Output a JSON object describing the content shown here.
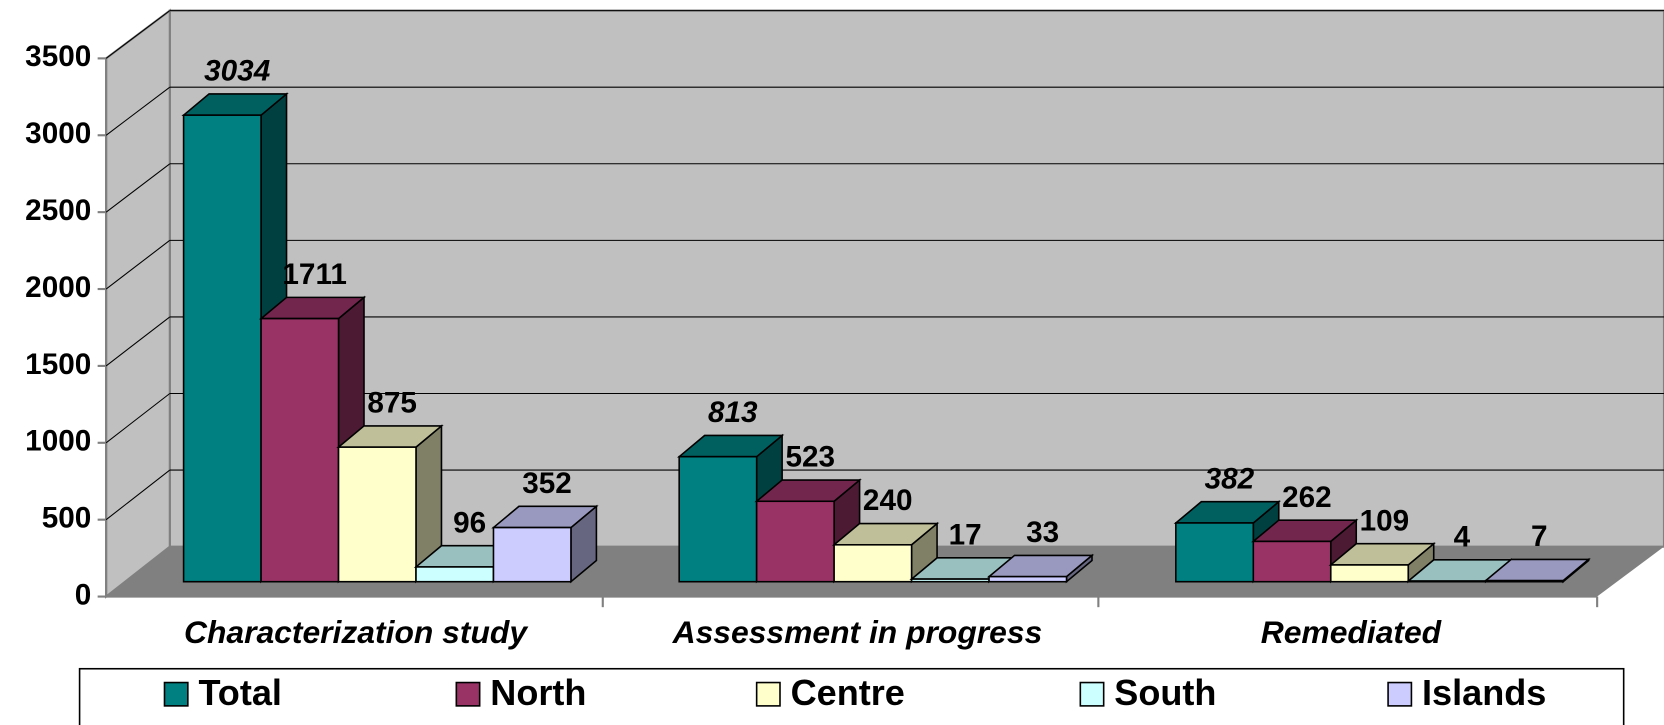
{
  "chart_data": {
    "type": "bar3d",
    "categories": [
      "Characterization study",
      "Assessment in progress",
      "Remediated"
    ],
    "series": [
      {
        "name": "Total",
        "color": "#008080",
        "values": [
          3034,
          813,
          382
        ]
      },
      {
        "name": "North",
        "color": "#993366",
        "values": [
          1711,
          523,
          262
        ]
      },
      {
        "name": "Centre",
        "color": "#FFFFCC",
        "values": [
          875,
          240,
          109
        ]
      },
      {
        "name": "South",
        "color": "#CCFFFF",
        "values": [
          96,
          17,
          4
        ]
      },
      {
        "name": "Islands",
        "color": "#CCCCFF",
        "values": [
          352,
          33,
          7
        ]
      }
    ],
    "ylim": [
      0,
      3500
    ],
    "yticks": [
      0,
      500,
      1000,
      1500,
      2000,
      2500,
      3000,
      3500
    ],
    "grid": true,
    "legend": "bottom"
  }
}
